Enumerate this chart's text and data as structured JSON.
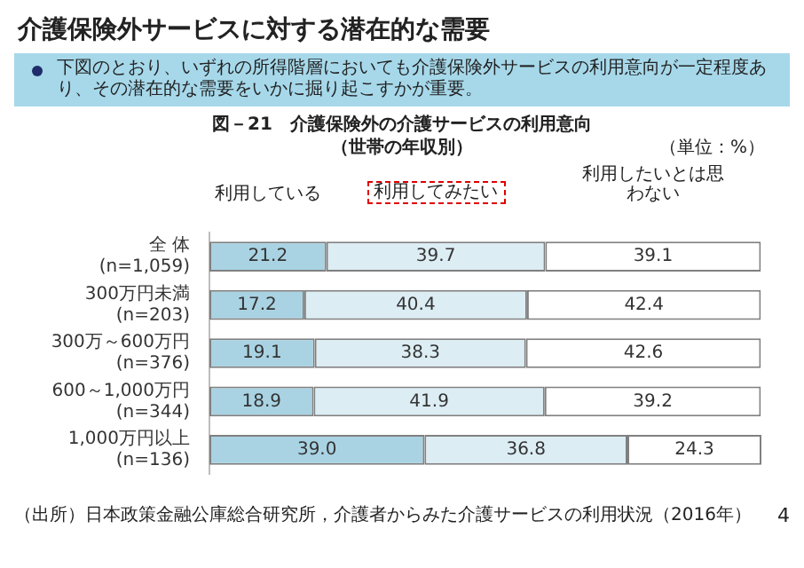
{
  "chart_data": {
    "type": "bar",
    "orientation": "horizontal",
    "stacked": true,
    "title": "介護保険外サービスに対する潜在的な需要",
    "subtitle": "図－21　介護保険外の介護サービスの利用意向（世帯の年収別）",
    "categories": [
      "全 体\n(n=1,059)",
      "300万円未満\n(n=203)",
      "300万～600万円\n(n=376)",
      "600～1,000万円\n(n=344)",
      "1,000万円以上\n(n=136)"
    ],
    "series": [
      {
        "name": "利用している",
        "color": "#a9d3e3",
        "values": [
          21.2,
          17.2,
          19.1,
          18.9,
          39.0
        ],
        "value_labels": [
          "21.2",
          "17.2",
          "19.1",
          "18.9",
          "39.0"
        ]
      },
      {
        "name": "利用してみたい",
        "color": "#dcedf4",
        "values": [
          39.7,
          40.4,
          38.3,
          41.9,
          36.8
        ],
        "value_labels": [
          "39.7",
          "40.4",
          "38.3",
          "41.9",
          "36.8"
        ]
      },
      {
        "name": "利用したいとは思わない",
        "color": "#ffffff",
        "values": [
          39.1,
          42.4,
          42.6,
          39.2,
          24.3
        ],
        "value_labels": [
          "39.1",
          "42.4",
          "42.6",
          "39.2",
          "24.3"
        ]
      }
    ],
    "legend": false,
    "grid": false,
    "annotations": [
      "下図のとおり、いずれの所得階層においても介護保険外サービスの利用意向が一定程度あり、その潜在的な需要をいかに掘り起こすかが重要。",
      "（単位：%）",
      "（出所）日本政策金融公庫総合研究所，介護者からみた介護サービスの利用状況（2016年）",
      "4"
    ]
  }
}
